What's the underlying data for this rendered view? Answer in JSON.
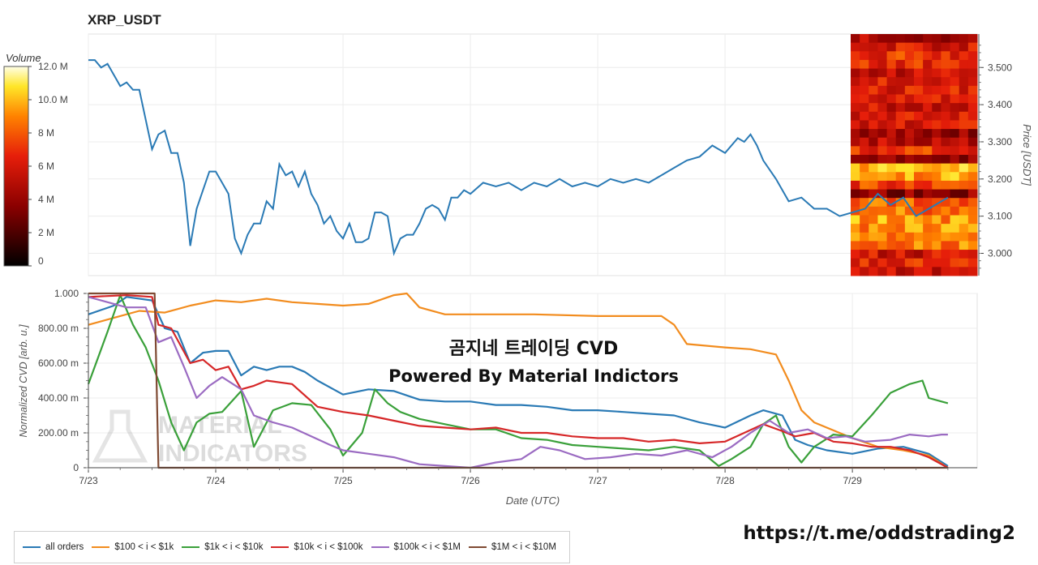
{
  "header": {
    "title": "XRP_USDT"
  },
  "overlay": {
    "line1": "곰지네 트레이딩 CVD",
    "line2": "Powered By Material Indictors"
  },
  "watermark": {
    "line1": "MATERIAL",
    "line2": "INDICATORS"
  },
  "footer_link": "https://t.me/oddstrading2",
  "colors": {
    "all_orders": "#2a7ab5",
    "s100_1k": "#f28c1e",
    "s1k_10k": "#3aa03a",
    "s10k_100k": "#d62728",
    "s100k_1m": "#9b6bc2",
    "s1m_10m": "#7f4a33"
  },
  "chart_data": [
    {
      "type": "line",
      "title": "XRP_USDT",
      "ylabel": "Price [USDT]",
      "ylim": [
        2.94,
        3.59
      ],
      "yticks": [
        "3.000",
        "3.100",
        "3.200",
        "3.300",
        "3.400",
        "3.500"
      ],
      "grid": true,
      "series": [
        {
          "color_key": "all_orders",
          "x": [
            23.0,
            23.05,
            23.1,
            23.15,
            23.2,
            23.25,
            23.3,
            23.35,
            23.4,
            23.5,
            23.55,
            23.6,
            23.65,
            23.7,
            23.75,
            23.8,
            23.85,
            23.9,
            23.95,
            24.0,
            24.05,
            24.1,
            24.15,
            24.2,
            24.25,
            24.3,
            24.35,
            24.4,
            24.45,
            24.5,
            24.55,
            24.6,
            24.65,
            24.7,
            24.75,
            24.8,
            24.85,
            24.9,
            24.95,
            25.0,
            25.05,
            25.1,
            25.15,
            25.2,
            25.25,
            25.3,
            25.35,
            25.4,
            25.45,
            25.5,
            25.55,
            25.6,
            25.65,
            25.7,
            25.75,
            25.8,
            25.85,
            25.9,
            25.95,
            26.0,
            26.1,
            26.2,
            26.3,
            26.4,
            26.5,
            26.6,
            26.7,
            26.8,
            26.9,
            27.0,
            27.1,
            27.2,
            27.3,
            27.4,
            27.5,
            27.6,
            27.7,
            27.8,
            27.9,
            28.0,
            28.1,
            28.15,
            28.2,
            28.25,
            28.3,
            28.4,
            28.5,
            28.6,
            28.7,
            28.8,
            28.9,
            29.0,
            29.1,
            29.2,
            29.3,
            29.4,
            29.5,
            29.6,
            29.7,
            29.75
          ],
          "y": [
            3.52,
            3.52,
            3.5,
            3.51,
            3.48,
            3.45,
            3.46,
            3.44,
            3.44,
            3.28,
            3.32,
            3.33,
            3.27,
            3.27,
            3.19,
            3.02,
            3.12,
            3.17,
            3.22,
            3.22,
            3.19,
            3.16,
            3.04,
            3.0,
            3.05,
            3.08,
            3.08,
            3.14,
            3.12,
            3.24,
            3.21,
            3.22,
            3.18,
            3.22,
            3.16,
            3.13,
            3.08,
            3.1,
            3.06,
            3.04,
            3.08,
            3.03,
            3.03,
            3.04,
            3.11,
            3.11,
            3.1,
            3.0,
            3.04,
            3.05,
            3.05,
            3.08,
            3.12,
            3.13,
            3.12,
            3.09,
            3.15,
            3.15,
            3.17,
            3.16,
            3.19,
            3.18,
            3.19,
            3.17,
            3.19,
            3.18,
            3.2,
            3.18,
            3.19,
            3.18,
            3.2,
            3.19,
            3.2,
            3.19,
            3.21,
            3.23,
            3.25,
            3.26,
            3.29,
            3.27,
            3.31,
            3.3,
            3.32,
            3.29,
            3.25,
            3.2,
            3.14,
            3.15,
            3.12,
            3.12,
            3.1,
            3.11,
            3.12,
            3.16,
            3.13,
            3.15,
            3.1,
            3.12,
            3.14,
            3.15
          ]
        }
      ]
    },
    {
      "type": "heatmap",
      "title": "Volume",
      "colorbar_ticks": [
        "0",
        "2 M",
        "4 M",
        "6 M",
        "8 M",
        "10.0 M",
        "12.0 M"
      ],
      "zlim": [
        0,
        12000000
      ]
    },
    {
      "type": "line",
      "xlabel": "Date (UTC)",
      "ylabel": "Normalized CVD [arb. u.]",
      "x_tick_labels": [
        "7/23",
        "7/24",
        "7/25",
        "7/26",
        "7/27",
        "7/28",
        "7/29"
      ],
      "x_tick_values": [
        23,
        24,
        25,
        26,
        27,
        28,
        29
      ],
      "xlim": [
        23,
        29.98
      ],
      "ylim": [
        0,
        1
      ],
      "yticks": [
        "0",
        "200.00 m",
        "400.00 m",
        "600.00 m",
        "800.00 m",
        "1.000"
      ],
      "grid": true,
      "legend_position": "bottom-left",
      "series": [
        {
          "name": "all orders",
          "color_key": "all_orders",
          "x": [
            23.0,
            23.2,
            23.3,
            23.5,
            23.6,
            23.7,
            23.8,
            23.9,
            24.0,
            24.1,
            24.2,
            24.3,
            24.4,
            24.5,
            24.6,
            24.7,
            24.8,
            25.0,
            25.2,
            25.4,
            25.6,
            25.8,
            26.0,
            26.2,
            26.4,
            26.6,
            26.8,
            27.0,
            27.2,
            27.4,
            27.6,
            27.8,
            28.0,
            28.2,
            28.3,
            28.45,
            28.55,
            28.65,
            28.8,
            29.0,
            29.2,
            29.4,
            29.6,
            29.75
          ],
          "y": [
            0.88,
            0.93,
            0.98,
            0.96,
            0.8,
            0.78,
            0.6,
            0.66,
            0.67,
            0.67,
            0.53,
            0.58,
            0.56,
            0.58,
            0.58,
            0.55,
            0.5,
            0.42,
            0.45,
            0.44,
            0.39,
            0.38,
            0.38,
            0.36,
            0.36,
            0.35,
            0.33,
            0.33,
            0.32,
            0.31,
            0.3,
            0.26,
            0.23,
            0.3,
            0.33,
            0.3,
            0.16,
            0.13,
            0.1,
            0.08,
            0.11,
            0.12,
            0.08,
            0.01
          ]
        },
        {
          "name": "$100 < i < $1k",
          "color_key": "s100_1k",
          "x": [
            23.0,
            23.2,
            23.4,
            23.6,
            23.8,
            24.0,
            24.2,
            24.4,
            24.6,
            24.8,
            25.0,
            25.2,
            25.4,
            25.5,
            25.6,
            25.8,
            26.0,
            26.5,
            27.0,
            27.5,
            27.6,
            27.7,
            28.0,
            28.2,
            28.4,
            28.5,
            28.6,
            28.7,
            29.0,
            29.2,
            29.4,
            29.6,
            29.75
          ],
          "y": [
            0.82,
            0.86,
            0.9,
            0.89,
            0.93,
            0.96,
            0.95,
            0.97,
            0.95,
            0.94,
            0.93,
            0.94,
            0.99,
            1.0,
            0.92,
            0.88,
            0.88,
            0.88,
            0.87,
            0.87,
            0.82,
            0.71,
            0.69,
            0.68,
            0.65,
            0.5,
            0.33,
            0.26,
            0.17,
            0.12,
            0.1,
            0.07,
            0.0
          ]
        },
        {
          "name": "$1k < i < $10k",
          "color_key": "s1k_10k",
          "x": [
            23.0,
            23.15,
            23.25,
            23.35,
            23.45,
            23.55,
            23.65,
            23.75,
            23.85,
            23.95,
            24.05,
            24.2,
            24.3,
            24.45,
            24.6,
            24.75,
            24.9,
            25.0,
            25.15,
            25.25,
            25.35,
            25.45,
            25.6,
            25.8,
            26.0,
            26.2,
            26.4,
            26.6,
            26.8,
            27.0,
            27.2,
            27.4,
            27.6,
            27.8,
            27.95,
            28.05,
            28.2,
            28.3,
            28.4,
            28.5,
            28.6,
            28.7,
            28.85,
            29.0,
            29.15,
            29.3,
            29.45,
            29.55,
            29.6,
            29.7,
            29.75
          ],
          "y": [
            0.48,
            0.78,
            0.99,
            0.82,
            0.69,
            0.5,
            0.26,
            0.1,
            0.26,
            0.31,
            0.32,
            0.44,
            0.12,
            0.33,
            0.37,
            0.36,
            0.22,
            0.07,
            0.2,
            0.45,
            0.37,
            0.32,
            0.28,
            0.25,
            0.22,
            0.22,
            0.17,
            0.16,
            0.13,
            0.12,
            0.11,
            0.1,
            0.12,
            0.1,
            0.01,
            0.05,
            0.12,
            0.25,
            0.3,
            0.12,
            0.03,
            0.12,
            0.19,
            0.18,
            0.3,
            0.43,
            0.48,
            0.5,
            0.4,
            0.38,
            0.37
          ]
        },
        {
          "name": "$10k < i < $100k",
          "color_key": "s10k_100k",
          "x": [
            23.0,
            23.3,
            23.5,
            23.55,
            23.65,
            23.8,
            23.9,
            24.0,
            24.1,
            24.2,
            24.3,
            24.4,
            24.6,
            24.8,
            25.0,
            25.2,
            25.4,
            25.6,
            25.8,
            26.0,
            26.2,
            26.4,
            26.6,
            26.8,
            27.0,
            27.2,
            27.4,
            27.6,
            27.8,
            28.0,
            28.15,
            28.3,
            28.45,
            28.55,
            28.7,
            28.85,
            29.0,
            29.15,
            29.3,
            29.45,
            29.6,
            29.75
          ],
          "y": [
            0.98,
            0.99,
            0.98,
            0.82,
            0.8,
            0.6,
            0.62,
            0.56,
            0.58,
            0.45,
            0.47,
            0.5,
            0.48,
            0.35,
            0.32,
            0.3,
            0.27,
            0.24,
            0.23,
            0.22,
            0.23,
            0.2,
            0.2,
            0.18,
            0.17,
            0.17,
            0.15,
            0.16,
            0.14,
            0.15,
            0.2,
            0.25,
            0.21,
            0.18,
            0.2,
            0.15,
            0.14,
            0.12,
            0.12,
            0.1,
            0.06,
            0.0
          ]
        },
        {
          "name": "$100k < i < $1M",
          "color_key": "s100k_1m",
          "x": [
            23.0,
            23.3,
            23.45,
            23.55,
            23.65,
            23.75,
            23.85,
            23.95,
            24.05,
            24.2,
            24.3,
            24.45,
            24.6,
            24.75,
            24.9,
            25.0,
            25.2,
            25.4,
            25.6,
            25.8,
            26.0,
            26.2,
            26.4,
            26.55,
            26.7,
            26.9,
            27.1,
            27.3,
            27.5,
            27.7,
            27.9,
            28.05,
            28.2,
            28.35,
            28.5,
            28.65,
            28.8,
            28.95,
            29.1,
            29.3,
            29.45,
            29.6,
            29.7,
            29.75
          ],
          "y": [
            0.98,
            0.92,
            0.92,
            0.72,
            0.75,
            0.58,
            0.4,
            0.47,
            0.52,
            0.45,
            0.3,
            0.26,
            0.23,
            0.18,
            0.13,
            0.1,
            0.08,
            0.06,
            0.02,
            0.01,
            0.0,
            0.03,
            0.05,
            0.12,
            0.1,
            0.05,
            0.06,
            0.08,
            0.07,
            0.1,
            0.06,
            0.12,
            0.2,
            0.27,
            0.2,
            0.22,
            0.17,
            0.18,
            0.15,
            0.16,
            0.19,
            0.18,
            0.19,
            0.19
          ]
        },
        {
          "name": "$1M < i < $10M",
          "color_key": "s1m_10m",
          "x": [
            23.0,
            23.5,
            23.52,
            23.55,
            29.75
          ],
          "y": [
            1.0,
            1.0,
            1.0,
            0.0,
            0.0
          ]
        }
      ]
    }
  ]
}
